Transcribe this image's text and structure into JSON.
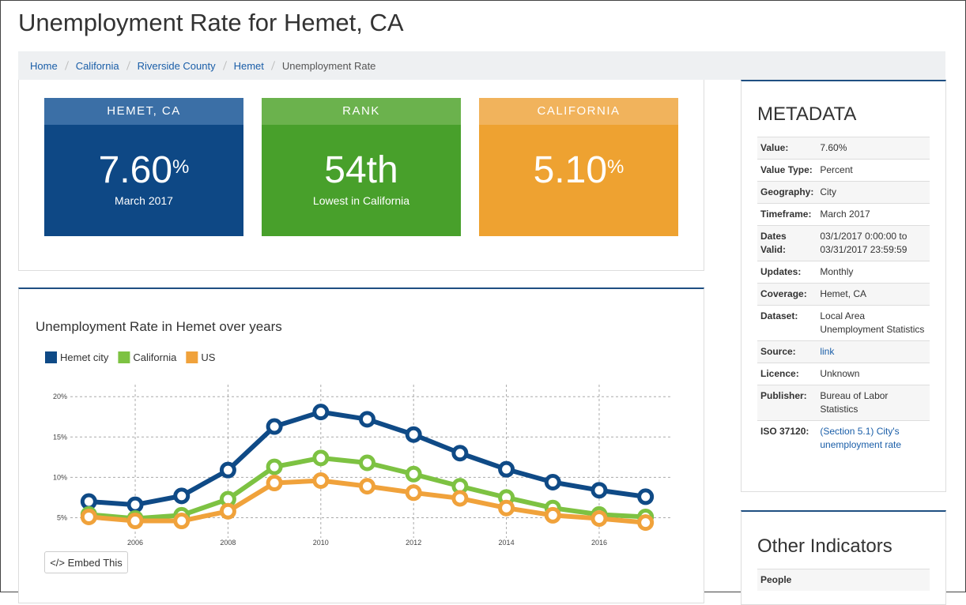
{
  "page_title": "Unemployment Rate for Hemet, CA",
  "breadcrumb": [
    "Home",
    "California",
    "Riverside County",
    "Hemet",
    "Unemployment Rate"
  ],
  "cards": [
    {
      "header": "HEMET, CA",
      "value": "7.60",
      "unit": "%",
      "sub": "March 2017"
    },
    {
      "header": "RANK",
      "value": "54th",
      "sub": "Lowest in California"
    },
    {
      "header": "CALIFORNIA",
      "value": "5.10",
      "unit": "%"
    }
  ],
  "chart_data": {
    "type": "line",
    "title": "Unemployment Rate in Hemet over years",
    "x": [
      2005,
      2006,
      2007,
      2008,
      2009,
      2010,
      2011,
      2012,
      2013,
      2014,
      2015,
      2016,
      2017
    ],
    "series": [
      {
        "name": "Hemet city",
        "color": "#0f4a86",
        "values": [
          7.0,
          6.6,
          7.7,
          10.9,
          16.3,
          18.1,
          17.2,
          15.3,
          13.0,
          11.0,
          9.4,
          8.4,
          7.6
        ]
      },
      {
        "name": "California",
        "color": "#7dc242",
        "values": [
          5.4,
          4.9,
          5.3,
          7.3,
          11.3,
          12.4,
          11.8,
          10.4,
          8.9,
          7.5,
          6.2,
          5.4,
          5.1
        ]
      },
      {
        "name": "US",
        "color": "#f0a23b",
        "values": [
          5.1,
          4.6,
          4.6,
          5.8,
          9.3,
          9.6,
          8.9,
          8.1,
          7.4,
          6.2,
          5.3,
          4.9,
          4.4
        ]
      }
    ],
    "xlim": [
      2004.5,
      2017.5
    ],
    "xticks": [
      2006,
      2008,
      2010,
      2012,
      2014,
      2016
    ],
    "ylim": [
      2.5,
      21
    ],
    "yticks": [
      {
        "value": 5,
        "label": "5%"
      },
      {
        "value": 10,
        "label": "10%"
      },
      {
        "value": 15,
        "label": "15%"
      },
      {
        "value": 20,
        "label": "20%"
      }
    ],
    "grid": true
  },
  "embed_button": "</> Embed This",
  "metadata": {
    "title": "METADATA",
    "rows": [
      [
        "Value:",
        "7.60%"
      ],
      [
        "Value Type:",
        "Percent"
      ],
      [
        "Geography:",
        "City"
      ],
      [
        "Timeframe:",
        "March 2017"
      ],
      [
        "Dates Valid:",
        "03/1/2017 0:00:00 to 03/31/2017 23:59:59"
      ],
      [
        "Updates:",
        "Monthly"
      ],
      [
        "Coverage:",
        "Hemet, CA"
      ],
      [
        "Dataset:",
        "Local Area Unemployment Statistics"
      ],
      [
        "Source:",
        "link"
      ],
      [
        "Licence:",
        "Unknown"
      ],
      [
        "Publisher:",
        "Bureau of Labor Statistics"
      ],
      [
        "ISO 37120:",
        "(Section 5.1) City's unemployment rate"
      ]
    ],
    "link_rows": [
      8,
      11
    ]
  },
  "other_indicators": {
    "title": "Other Indicators",
    "rows": [
      "People"
    ]
  }
}
